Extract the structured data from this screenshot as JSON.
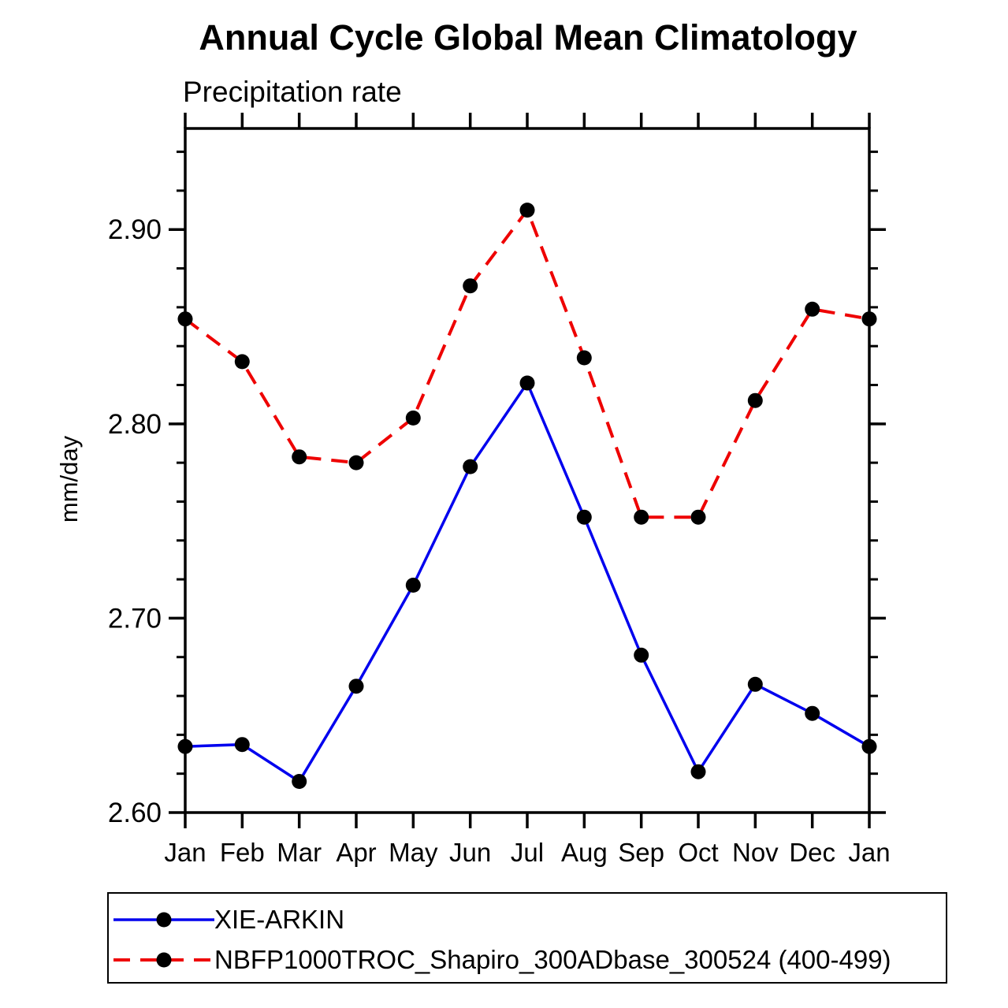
{
  "title": "Annual Cycle Global Mean Climatology",
  "subtitle": "Precipitation rate",
  "ylabel": "mm/day",
  "legend": {
    "entries": [
      {
        "label": "XIE-ARKIN",
        "color": "#0000ee",
        "style": "solid",
        "marker_color": "#000000"
      },
      {
        "label": "NBFP1000TROC_Shapiro_300ADbase_300524 (400-499)",
        "color": "#ee0000",
        "style": "dashed",
        "marker_color": "#000000"
      }
    ]
  },
  "chart_data": {
    "type": "line",
    "title": "Annual Cycle Global Mean Climatology",
    "subtitle": "Precipitation rate",
    "xlabel": "",
    "ylabel": "mm/day",
    "categories": [
      "Jan",
      "Feb",
      "Mar",
      "Apr",
      "May",
      "Jun",
      "Jul",
      "Aug",
      "Sep",
      "Oct",
      "Nov",
      "Dec",
      "Jan"
    ],
    "series": [
      {
        "name": "XIE-ARKIN",
        "color": "#0000ee",
        "style": "solid",
        "marker": "circle",
        "marker_color": "#000000",
        "values": [
          2.634,
          2.635,
          2.616,
          2.665,
          2.717,
          2.778,
          2.821,
          2.752,
          2.681,
          2.621,
          2.666,
          2.651,
          2.634
        ]
      },
      {
        "name": "NBFP1000TROC_Shapiro_300ADbase_300524 (400-499)",
        "color": "#ee0000",
        "style": "dashed",
        "marker": "circle",
        "marker_color": "#000000",
        "values": [
          2.854,
          2.832,
          2.783,
          2.78,
          2.803,
          2.871,
          2.91,
          2.834,
          2.752,
          2.752,
          2.812,
          2.859,
          2.854
        ]
      }
    ],
    "ylim": [
      2.6,
      2.952
    ],
    "yticks_major": [
      2.6,
      2.7,
      2.8,
      2.9
    ],
    "ytick_labels": [
      "2.60",
      "2.70",
      "2.80",
      "2.90"
    ],
    "ytick_minor_step": 0.02,
    "grid": false,
    "legend_position": "bottom"
  }
}
